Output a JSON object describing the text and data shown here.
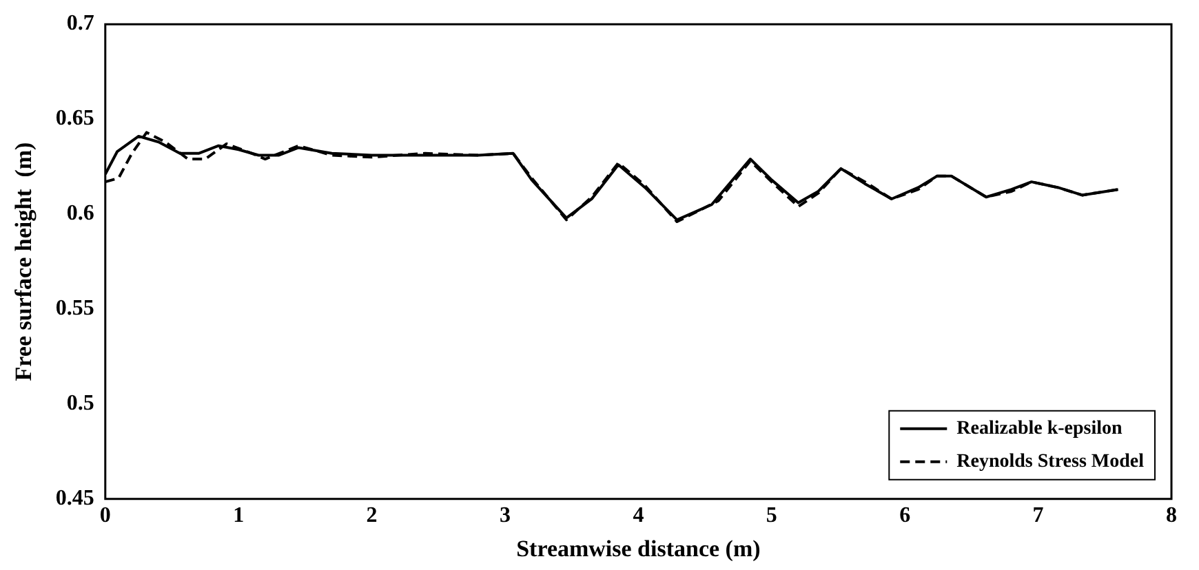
{
  "chart_data": {
    "type": "line",
    "xlabel": "Streamwise distance (m)",
    "ylabel": "Free surface height  (m)",
    "xlim": [
      0,
      8
    ],
    "xticks": [
      0,
      1,
      2,
      3,
      4,
      5,
      6,
      7,
      8
    ],
    "ylim": [
      0.45,
      0.7
    ],
    "yticks": [
      0.45,
      0.5,
      0.55,
      0.6,
      0.65,
      0.7
    ],
    "grid": false,
    "legend": "bottom right",
    "marker": "none",
    "series": [
      {
        "name": "Realizable k-epsilon",
        "color": "#000000",
        "line_style": "solid",
        "x": [
          0,
          0.09,
          0.25,
          0.4,
          0.56,
          0.7,
          0.85,
          1.0,
          1.15,
          1.3,
          1.45,
          1.7,
          2.0,
          2.4,
          2.8,
          3.06,
          3.2,
          3.46,
          3.65,
          3.85,
          4.05,
          4.29,
          4.55,
          4.84,
          5.0,
          5.2,
          5.35,
          5.52,
          5.7,
          5.9,
          6.1,
          6.24,
          6.35,
          6.61,
          6.8,
          6.95,
          7.15,
          7.33,
          7.6
        ],
        "values": [
          0.621,
          0.633,
          0.641,
          0.638,
          0.632,
          0.632,
          0.636,
          0.634,
          0.631,
          0.631,
          0.635,
          0.632,
          0.631,
          0.631,
          0.631,
          0.632,
          0.618,
          0.598,
          0.608,
          0.626,
          0.614,
          0.597,
          0.605,
          0.629,
          0.618,
          0.606,
          0.612,
          0.624,
          0.616,
          0.608,
          0.614,
          0.62,
          0.62,
          0.609,
          0.613,
          0.617,
          0.614,
          0.61,
          0.613
        ]
      },
      {
        "name": "Reynolds Stress Model",
        "color": "#000000",
        "line_style": "dashed",
        "x": [
          0,
          0.1,
          0.2,
          0.31,
          0.45,
          0.62,
          0.75,
          0.91,
          1.1,
          1.2,
          1.45,
          1.7,
          2.0,
          2.4,
          2.8,
          3.06,
          3.2,
          3.46,
          3.65,
          3.85,
          4.05,
          4.29,
          4.6,
          4.84,
          5.0,
          5.2,
          5.35,
          5.52,
          5.7,
          5.9,
          6.1,
          6.24,
          6.35,
          6.61,
          6.8,
          6.95,
          7.15,
          7.33,
          7.6
        ],
        "values": [
          0.617,
          0.619,
          0.632,
          0.643,
          0.638,
          0.629,
          0.629,
          0.637,
          0.632,
          0.629,
          0.636,
          0.631,
          0.63,
          0.632,
          0.631,
          0.632,
          0.619,
          0.597,
          0.609,
          0.627,
          0.615,
          0.596,
          0.607,
          0.628,
          0.617,
          0.604,
          0.611,
          0.624,
          0.617,
          0.608,
          0.613,
          0.62,
          0.62,
          0.609,
          0.612,
          0.617,
          0.614,
          0.61,
          0.613
        ]
      }
    ]
  }
}
